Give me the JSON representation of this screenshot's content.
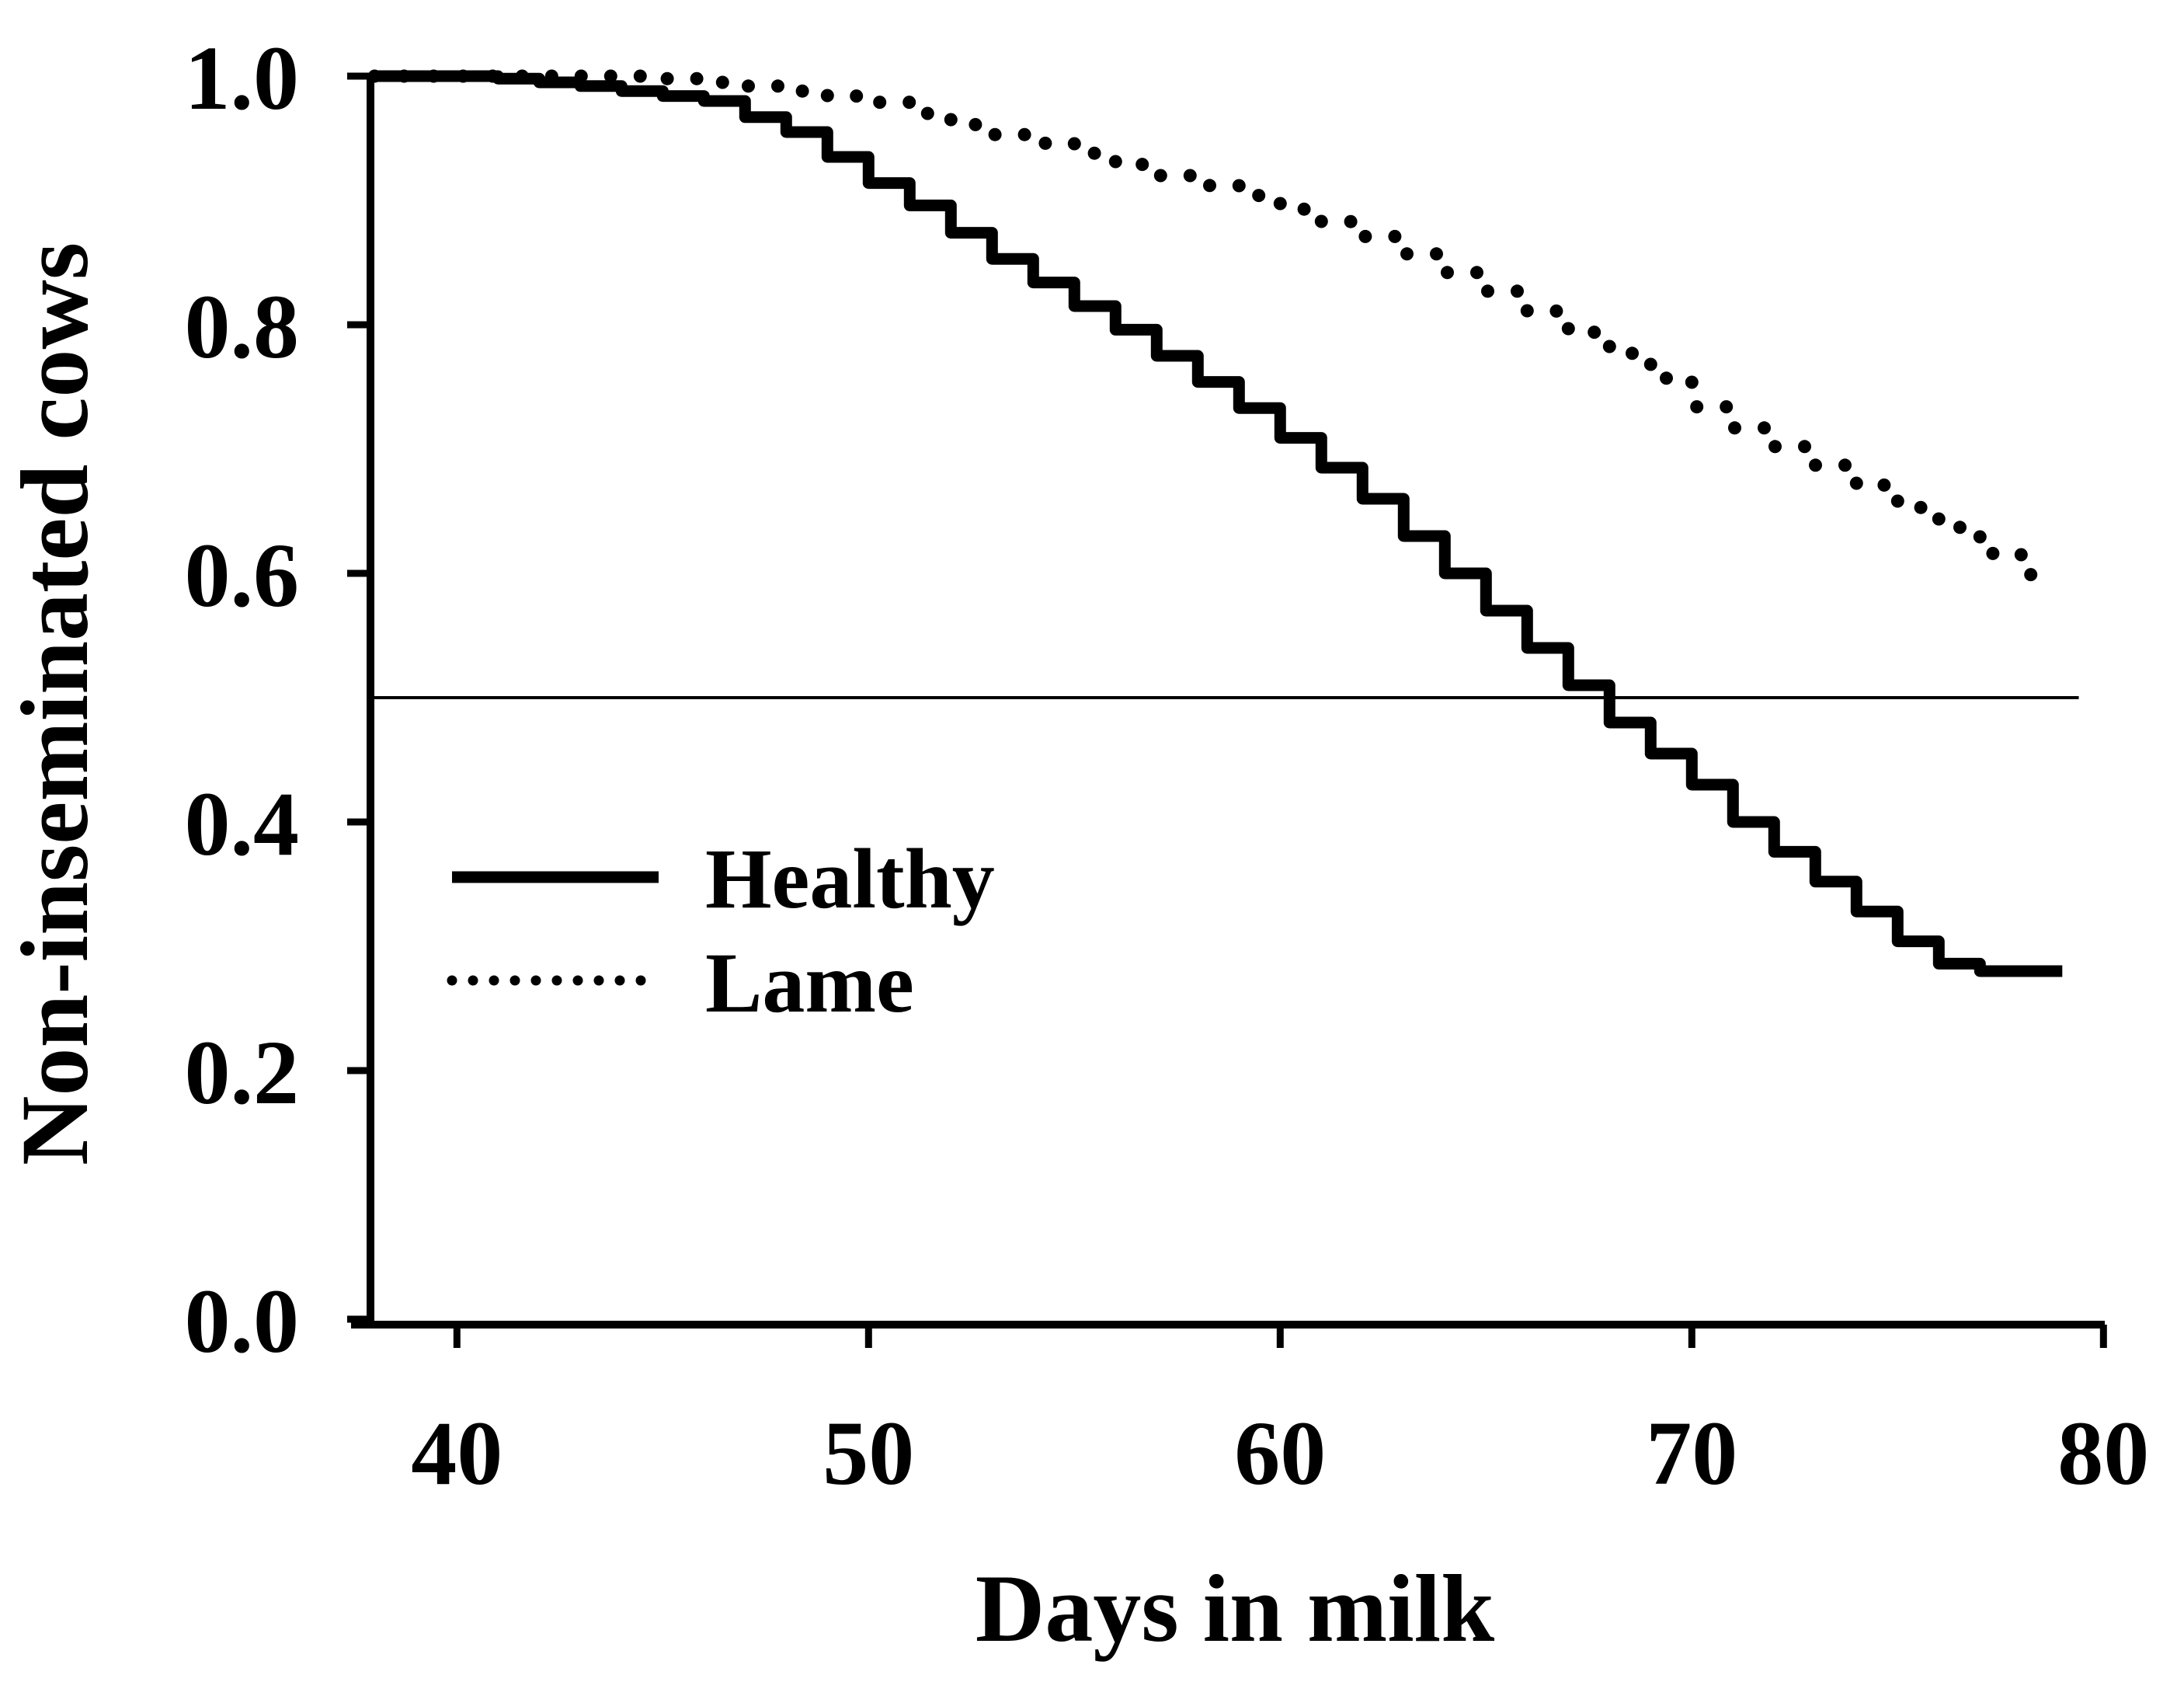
{
  "figure": {
    "background_color": "#ffffff",
    "ink_color": "#000000"
  },
  "chart_data": {
    "type": "line",
    "subtype": "kaplan-meier-survival-step",
    "title": "",
    "xlabel": "Days in milk",
    "ylabel": "Non-inseminated cows",
    "xlim": [
      37.9,
      80
    ],
    "ylim": [
      0.0,
      1.0
    ],
    "x_ticks": [
      40,
      50,
      60,
      70,
      80
    ],
    "x_tick_labels": [
      "40",
      "50",
      "60",
      "70",
      "80"
    ],
    "y_ticks": [
      1.0,
      0.8,
      0.6,
      0.4,
      0.2,
      0.0
    ],
    "y_tick_labels": [
      "1.0",
      "0.8",
      "0.6",
      "0.4",
      "0.2",
      "0.0"
    ],
    "grid": false,
    "legend": {
      "position": "inside-left-center",
      "entries": [
        "Healthy",
        "Lame"
      ]
    },
    "reference_line": {
      "y": 0.5,
      "x_start": 37.9,
      "x_end": 79.4
    },
    "series": [
      {
        "name": "Healthy",
        "line_style": "solid",
        "steps": [
          [
            38,
            1.0
          ],
          [
            41,
            0.998
          ],
          [
            42,
            0.995
          ],
          [
            43,
            0.992
          ],
          [
            44,
            0.988
          ],
          [
            45,
            0.984
          ],
          [
            46,
            0.98
          ],
          [
            47,
            0.967
          ],
          [
            48,
            0.955
          ],
          [
            49,
            0.935
          ],
          [
            50,
            0.914
          ],
          [
            51,
            0.896
          ],
          [
            52,
            0.874
          ],
          [
            53,
            0.853
          ],
          [
            54,
            0.834
          ],
          [
            55,
            0.815
          ],
          [
            56,
            0.796
          ],
          [
            57,
            0.775
          ],
          [
            58,
            0.754
          ],
          [
            59,
            0.733
          ],
          [
            60,
            0.709
          ],
          [
            61,
            0.685
          ],
          [
            62,
            0.66
          ],
          [
            63,
            0.63
          ],
          [
            64,
            0.6
          ],
          [
            65,
            0.57
          ],
          [
            66,
            0.54
          ],
          [
            67,
            0.51
          ],
          [
            68,
            0.48
          ],
          [
            69,
            0.455
          ],
          [
            70,
            0.43
          ],
          [
            71,
            0.4
          ],
          [
            72,
            0.376
          ],
          [
            73,
            0.352
          ],
          [
            74,
            0.328
          ],
          [
            75,
            0.304
          ],
          [
            76,
            0.286
          ],
          [
            77,
            0.28
          ],
          [
            79,
            0.28
          ]
        ]
      },
      {
        "name": "Lame",
        "line_style": "dotted",
        "steps": [
          [
            38,
            1.0
          ],
          [
            45,
            0.998
          ],
          [
            46,
            0.995
          ],
          [
            47,
            0.992
          ],
          [
            48,
            0.988
          ],
          [
            49,
            0.984
          ],
          [
            50,
            0.979
          ],
          [
            51,
            0.97
          ],
          [
            52,
            0.961
          ],
          [
            53,
            0.953
          ],
          [
            54,
            0.946
          ],
          [
            55,
            0.938
          ],
          [
            56,
            0.929
          ],
          [
            57,
            0.92
          ],
          [
            58,
            0.912
          ],
          [
            59,
            0.904
          ],
          [
            60,
            0.893
          ],
          [
            61,
            0.883
          ],
          [
            62,
            0.871
          ],
          [
            63,
            0.857
          ],
          [
            64,
            0.842
          ],
          [
            65,
            0.827
          ],
          [
            66,
            0.811
          ],
          [
            67,
            0.794
          ],
          [
            68,
            0.777
          ],
          [
            69,
            0.757
          ],
          [
            70,
            0.734
          ],
          [
            71,
            0.717
          ],
          [
            72,
            0.702
          ],
          [
            73,
            0.687
          ],
          [
            74,
            0.671
          ],
          [
            75,
            0.653
          ],
          [
            76,
            0.637
          ],
          [
            77,
            0.616
          ],
          [
            78,
            0.599
          ],
          [
            78.6,
            0.599
          ]
        ]
      }
    ]
  }
}
